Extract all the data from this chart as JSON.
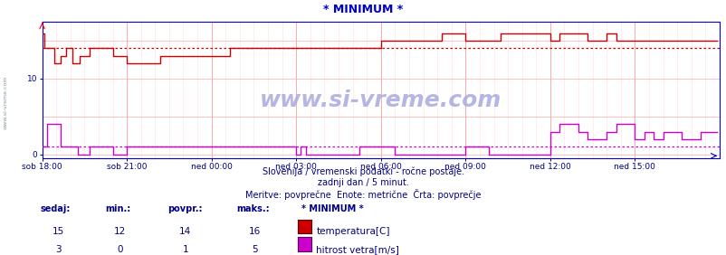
{
  "title": "* MINIMUM *",
  "title_color": "#0000cc",
  "title_fontsize": 9,
  "bg_color": "#ffffff",
  "plot_bg_color": "#ffffff",
  "x_labels": [
    "sob 18:00",
    "sob 21:00",
    "ned 00:00",
    "ned 03:00",
    "ned 06:00",
    "ned 09:00",
    "ned 12:00",
    "ned 15:00"
  ],
  "x_label_color": "#000080",
  "ylim": [
    -0.5,
    17.5
  ],
  "xlim": [
    0,
    288
  ],
  "x_tick_positions": [
    0,
    36,
    72,
    108,
    144,
    180,
    216,
    252
  ],
  "subtitle1": "Slovenija / vremenski podatki - ročne postaje.",
  "subtitle2": "zadnji dan / 5 minut.",
  "subtitle3": "Meritve: povprečne  Enote: metrične  Črta: povprečje",
  "subtitle_color": "#000080",
  "subtitle_fontsize": 7,
  "temp_color": "#cc0000",
  "wind_color": "#cc00cc",
  "temp_avg": 14,
  "wind_avg": 1,
  "temp_min": 12,
  "temp_max": 16,
  "temp_now": 15,
  "wind_min": 0,
  "wind_max": 5,
  "wind_now": 3,
  "legend_temp_color": "#cc0000",
  "legend_wind_color": "#cc00cc",
  "watermark": "www.si-vreme.com",
  "watermark_color": "#aaaadd",
  "watermark_fontsize": 18,
  "axis_color": "#000080",
  "tick_color": "#000080",
  "grid_major_color": "#ffaaaa",
  "grid_minor_color": "#ffdddd",
  "border_color": "#0000cc"
}
